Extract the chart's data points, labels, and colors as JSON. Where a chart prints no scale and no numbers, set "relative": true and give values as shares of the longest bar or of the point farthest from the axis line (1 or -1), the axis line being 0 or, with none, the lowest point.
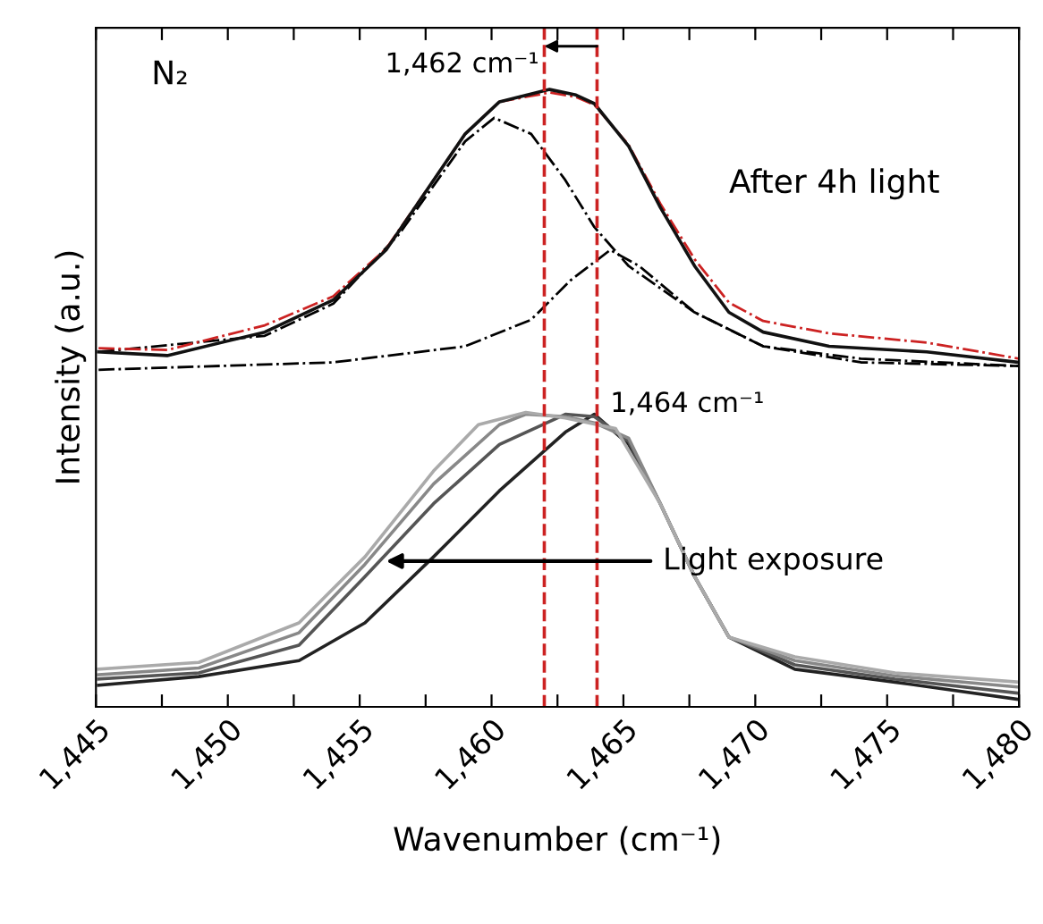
{
  "chart_data": {
    "type": "line",
    "relative": true,
    "xlabel": "Wavenumber (cm⁻¹)",
    "ylabel": "Intensity (a.u.)",
    "grid": false,
    "marker": "none",
    "xlim": [
      1445,
      1480
    ],
    "xticks": [
      {
        "value": 1445,
        "label": "1,445"
      },
      {
        "value": 1447.5,
        "label": null
      },
      {
        "value": 1450,
        "label": "1,450"
      },
      {
        "value": 1452.5,
        "label": null
      },
      {
        "value": 1455,
        "label": "1,455"
      },
      {
        "value": 1457.5,
        "label": null
      },
      {
        "value": 1460,
        "label": "1,460"
      },
      {
        "value": 1462.5,
        "label": null
      },
      {
        "value": 1465,
        "label": "1,465"
      },
      {
        "value": 1467.5,
        "label": null
      },
      {
        "value": 1470,
        "label": "1,470"
      },
      {
        "value": 1472.5,
        "label": null
      },
      {
        "value": 1475,
        "label": "1,475"
      },
      {
        "value": 1477.5,
        "label": null
      },
      {
        "value": 1480,
        "label": "1,480"
      }
    ],
    "series": [
      {
        "color": "#222222",
        "line_style": "solid",
        "x": [
          1445.1,
          1448.9,
          1452.7,
          1455.2,
          1457.8,
          1460.3,
          1462.8,
          1463.9,
          1465.2,
          1466.4,
          1467.7,
          1469.0,
          1471.5,
          1475.3,
          1480.0
        ],
        "values": [
          0.035,
          0.049,
          0.075,
          0.136,
          0.243,
          0.35,
          0.445,
          0.474,
          0.425,
          0.329,
          0.211,
          0.113,
          0.061,
          0.04,
          0.012
        ]
      },
      {
        "color": "#555555",
        "line_style": "solid",
        "x": [
          1445.1,
          1448.9,
          1452.7,
          1455.2,
          1457.8,
          1460.3,
          1462.8,
          1463.9,
          1465.2,
          1466.4,
          1467.7,
          1469.0,
          1471.5,
          1475.3,
          1480.0
        ],
        "values": [
          0.045,
          0.055,
          0.1,
          0.211,
          0.329,
          0.425,
          0.474,
          0.47,
          0.43,
          0.329,
          0.211,
          0.113,
          0.068,
          0.045,
          0.022
        ]
      },
      {
        "color": "#888888",
        "line_style": "solid",
        "x": [
          1445.1,
          1448.9,
          1452.7,
          1455.2,
          1457.8,
          1460.3,
          1461.3,
          1462.8,
          1463.9,
          1465.2,
          1466.4,
          1467.7,
          1469.0,
          1471.5,
          1475.3,
          1480.0
        ],
        "values": [
          0.052,
          0.063,
          0.12,
          0.231,
          0.361,
          0.457,
          0.474,
          0.47,
          0.46,
          0.435,
          0.329,
          0.211,
          0.113,
          0.075,
          0.05,
          0.032
        ]
      },
      {
        "color": "#aaaaaa",
        "line_style": "solid",
        "x": [
          1445.1,
          1448.9,
          1452.7,
          1455.2,
          1457.8,
          1459.5,
          1461.3,
          1462.8,
          1464.7,
          1466.4,
          1467.7,
          1469.0,
          1471.5,
          1475.3,
          1480.0
        ],
        "values": [
          0.061,
          0.072,
          0.136,
          0.243,
          0.382,
          0.457,
          0.477,
          0.468,
          0.451,
          0.329,
          0.211,
          0.113,
          0.081,
          0.055,
          0.04
        ]
      },
      {
        "color": "#000000",
        "line_style": "dashdot",
        "x": [
          1445.1,
          1451.4,
          1454.0,
          1456.5,
          1459.0,
          1460.1,
          1461.5,
          1462.8,
          1463.9,
          1465.2,
          1467.7,
          1470.3,
          1474.0,
          1480.0
        ],
        "values": [
          0.575,
          0.601,
          0.653,
          0.766,
          0.916,
          0.954,
          0.928,
          0.853,
          0.777,
          0.714,
          0.639,
          0.584,
          0.564,
          0.552
        ]
      },
      {
        "color": "#000000",
        "line_style": "dashdot",
        "x": [
          1445.1,
          1454.0,
          1459.0,
          1461.5,
          1463.0,
          1464.5,
          1465.6,
          1467.7,
          1470.3,
          1474.0,
          1480.0
        ],
        "values": [
          0.546,
          0.558,
          0.584,
          0.627,
          0.691,
          0.74,
          0.714,
          0.639,
          0.584,
          0.558,
          0.552
        ]
      },
      {
        "color": "#cc2222",
        "line_style": "dashdot",
        "x": [
          1445.1,
          1447.7,
          1451.4,
          1454.0,
          1456.0,
          1457.8,
          1459.0,
          1460.3,
          1462.2,
          1463.2,
          1463.9,
          1465.2,
          1466.4,
          1467.7,
          1469.0,
          1470.3,
          1472.8,
          1476.5,
          1480.0
        ],
        "values": [
          0.581,
          0.578,
          0.618,
          0.665,
          0.742,
          0.853,
          0.928,
          0.98,
          0.995,
          0.988,
          0.975,
          0.91,
          0.815,
          0.725,
          0.655,
          0.625,
          0.605,
          0.59,
          0.564
        ]
      },
      {
        "color": "#111111",
        "line_style": "solid",
        "x": [
          1445.1,
          1447.7,
          1451.4,
          1454.0,
          1456.0,
          1457.8,
          1459.0,
          1460.3,
          1462.2,
          1463.2,
          1463.9,
          1465.2,
          1466.4,
          1467.7,
          1469.0,
          1470.3,
          1472.8,
          1476.5,
          1480.0
        ],
        "values": [
          0.575,
          0.569,
          0.607,
          0.659,
          0.74,
          0.853,
          0.928,
          0.98,
          1.0,
          0.991,
          0.977,
          0.908,
          0.809,
          0.714,
          0.639,
          0.607,
          0.584,
          0.575,
          0.558
        ]
      }
    ],
    "ref_lines": [
      {
        "axis": "x",
        "value": 1462,
        "label": "1,462 cm⁻¹",
        "color": "#cc2222",
        "line_style": "dashed"
      },
      {
        "axis": "x",
        "value": 1464,
        "label": "1,464 cm⁻¹",
        "color": "#cc2222",
        "line_style": "dashed"
      }
    ],
    "annotations": [
      "N₂",
      "After 4h light",
      {
        "text": "Light exposure",
        "x": 1456,
        "y": 0.236
      }
    ]
  }
}
